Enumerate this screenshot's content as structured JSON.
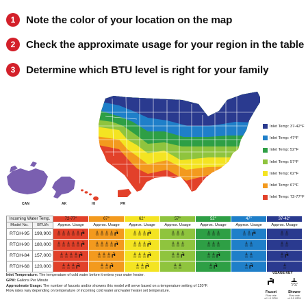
{
  "steps": [
    {
      "number": "1",
      "text": "Note the color of your location on the map"
    },
    {
      "number": "2",
      "text": "Check the approximate usage for your region in the table"
    },
    {
      "number": "3",
      "text": "Determine which BTU level is right for your family"
    }
  ],
  "map": {
    "labels": {
      "can": "CAN",
      "ak": "AK",
      "hi": "HI",
      "pr": "PR"
    }
  },
  "legend": [
    {
      "label": "Inlet Temp: 37-42°F",
      "color": "#2a3a8f"
    },
    {
      "label": "Inlet Temp: 47°F",
      "color": "#1f7fc9"
    },
    {
      "label": "Inlet Temp: 52°F",
      "color": "#2e9f45"
    },
    {
      "label": "Inlet Temp: 57°F",
      "color": "#8fc43e"
    },
    {
      "label": "Inlet Temp: 62°F",
      "color": "#f4e422"
    },
    {
      "label": "Inlet Temp: 67°F",
      "color": "#f39a1e"
    },
    {
      "label": "Inlet Temp: 72-77°F",
      "color": "#e2412a"
    }
  ],
  "table": {
    "header_label": "Incoming Water Temp.",
    "model_label": "Model No.",
    "btu_label": "BTU/h",
    "approx_label": "Approx. Usage",
    "zones": [
      {
        "temp": "72-77°",
        "color": "#e2412a"
      },
      {
        "temp": "67°",
        "color": "#f39a1e"
      },
      {
        "temp": "62°",
        "color": "#f4e422"
      },
      {
        "temp": "57°",
        "color": "#8fc43e"
      },
      {
        "temp": "52°",
        "color": "#2e9f45"
      },
      {
        "temp": "47°",
        "color": "#1f7fc9"
      },
      {
        "temp": "37-42°",
        "color": "#2a3a8f"
      }
    ],
    "rows": [
      {
        "model": "RTGH-95",
        "btu": "199,900",
        "usage": [
          [
            5,
            1
          ],
          [
            4,
            1
          ],
          [
            3,
            1
          ],
          [
            3,
            0
          ],
          [
            3,
            0
          ],
          [
            2,
            1
          ],
          [
            2,
            0
          ]
        ]
      },
      {
        "model": "RTGH-90",
        "btu": "180,000",
        "usage": [
          [
            5,
            1
          ],
          [
            4,
            1
          ],
          [
            3,
            1
          ],
          [
            3,
            0
          ],
          [
            3,
            0
          ],
          [
            2,
            0
          ],
          [
            2,
            0
          ]
        ]
      },
      {
        "model": "RTGH-84",
        "btu": "157,000",
        "usage": [
          [
            4,
            1
          ],
          [
            3,
            1
          ],
          [
            3,
            1
          ],
          [
            2,
            1
          ],
          [
            2,
            1
          ],
          [
            2,
            0
          ],
          [
            1,
            1
          ]
        ]
      },
      {
        "model": "RTGH-68",
        "btu": "120,000",
        "usage": [
          [
            3,
            1
          ],
          [
            2,
            1
          ],
          [
            2,
            1
          ],
          [
            2,
            0
          ],
          [
            1,
            1
          ],
          [
            1,
            1
          ],
          [
            1,
            0
          ]
        ]
      }
    ]
  },
  "notes": {
    "inlet_label": "Inlet Temperature:",
    "inlet_text": "The temperature of cold water before it enters your water heater.",
    "gpm_label": "GPM:",
    "gpm_text": "Gallons Per Minute",
    "usage_label": "Approximate Usage:",
    "usage_text": "The number of faucets and/or showers this model will serve based on a temperature setting of 120°F.",
    "usage_text2": "Flow rates vary depending on temperature of incoming cold water and water heater set temperature."
  },
  "usage_key": {
    "title": "USAGE KEY",
    "faucet_name": "Faucet",
    "faucet_sub1": "Flow rate",
    "faucet_sub2": "of 1.0 GPM",
    "shower_name": "Shower",
    "shower_sub1": "Flow rate",
    "shower_sub2": "of 2.0 GPM"
  }
}
